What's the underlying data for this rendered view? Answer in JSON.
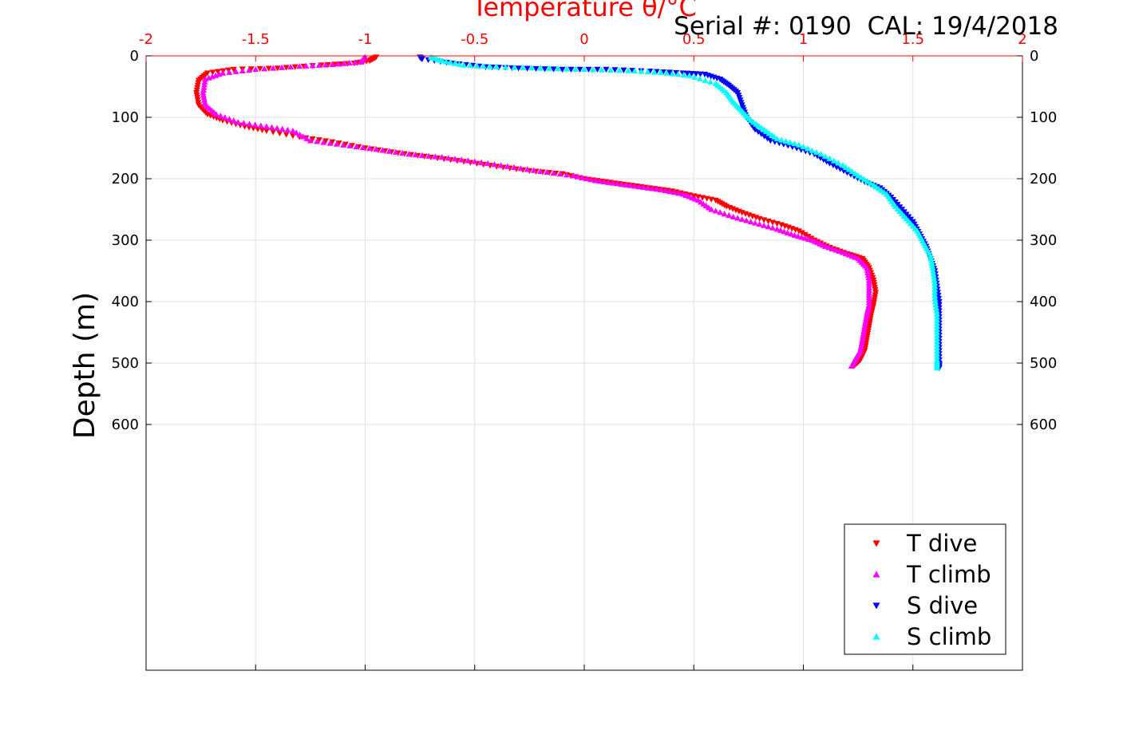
{
  "chart_data": {
    "type": "scatter",
    "title": "Temperature θ/°C",
    "annotation": "Serial #: 0190  CAL: 19/4/2018",
    "xlabel": "Temperature θ/°C",
    "ylabel": "Depth (m)",
    "xlim": [
      -2,
      2
    ],
    "ylim": [
      0,
      1000
    ],
    "y_reversed": true,
    "x_ticks": [
      "-2",
      "-1.5",
      "-1",
      "-0.5",
      "0",
      "0.5",
      "1",
      "1.5",
      "2"
    ],
    "y_ticks": [
      "0",
      "100",
      "200",
      "300",
      "400",
      "500",
      "600"
    ],
    "grid": true,
    "legend_position": "bottom-right",
    "colors": {
      "axis_top": "#ff0000",
      "axis_other": "#000000",
      "grid": "#e0e0e0"
    },
    "series": [
      {
        "name": "T dive",
        "marker": "triangle-down",
        "color": "#ff0000",
        "points": [
          [
            -0.95,
            2
          ],
          [
            -0.98,
            8
          ],
          [
            -1.05,
            12
          ],
          [
            -1.2,
            15
          ],
          [
            -1.4,
            20
          ],
          [
            -1.6,
            22
          ],
          [
            -1.72,
            28
          ],
          [
            -1.76,
            40
          ],
          [
            -1.77,
            60
          ],
          [
            -1.76,
            80
          ],
          [
            -1.72,
            95
          ],
          [
            -1.65,
            105
          ],
          [
            -1.55,
            115
          ],
          [
            -1.45,
            122
          ],
          [
            -1.3,
            132
          ],
          [
            -1.15,
            140
          ],
          [
            -1.0,
            150
          ],
          [
            -0.85,
            158
          ],
          [
            -0.7,
            165
          ],
          [
            -0.55,
            172
          ],
          [
            -0.4,
            180
          ],
          [
            -0.25,
            187
          ],
          [
            -0.1,
            192
          ],
          [
            0.0,
            200
          ],
          [
            0.1,
            205
          ],
          [
            0.2,
            210
          ],
          [
            0.3,
            215
          ],
          [
            0.4,
            220
          ],
          [
            0.5,
            228
          ],
          [
            0.6,
            235
          ],
          [
            0.65,
            245
          ],
          [
            0.72,
            255
          ],
          [
            0.8,
            265
          ],
          [
            0.9,
            275
          ],
          [
            0.98,
            285
          ],
          [
            1.05,
            300
          ],
          [
            1.12,
            312
          ],
          [
            1.2,
            322
          ],
          [
            1.27,
            330
          ],
          [
            1.3,
            345
          ],
          [
            1.32,
            365
          ],
          [
            1.33,
            385
          ],
          [
            1.32,
            405
          ],
          [
            1.31,
            420
          ],
          [
            1.3,
            440
          ],
          [
            1.29,
            460
          ],
          [
            1.28,
            480
          ],
          [
            1.26,
            495
          ],
          [
            1.23,
            505
          ]
        ]
      },
      {
        "name": "T climb",
        "marker": "triangle-up",
        "color": "#ff00ff",
        "points": [
          [
            -1.0,
            2
          ],
          [
            -1.02,
            10
          ],
          [
            -1.15,
            14
          ],
          [
            -1.3,
            17
          ],
          [
            -1.5,
            22
          ],
          [
            -1.65,
            28
          ],
          [
            -1.73,
            38
          ],
          [
            -1.74,
            60
          ],
          [
            -1.73,
            80
          ],
          [
            -1.68,
            95
          ],
          [
            -1.58,
            108
          ],
          [
            -1.45,
            115
          ],
          [
            -1.33,
            122
          ],
          [
            -1.25,
            138
          ],
          [
            -1.1,
            145
          ],
          [
            -0.95,
            152
          ],
          [
            -0.8,
            160
          ],
          [
            -0.65,
            165
          ],
          [
            -0.5,
            172
          ],
          [
            -0.35,
            180
          ],
          [
            -0.2,
            188
          ],
          [
            -0.05,
            195
          ],
          [
            0.05,
            203
          ],
          [
            0.15,
            208
          ],
          [
            0.25,
            213
          ],
          [
            0.35,
            218
          ],
          [
            0.45,
            225
          ],
          [
            0.52,
            235
          ],
          [
            0.58,
            250
          ],
          [
            0.68,
            262
          ],
          [
            0.78,
            272
          ],
          [
            0.88,
            282
          ],
          [
            0.96,
            292
          ],
          [
            1.04,
            300
          ],
          [
            1.1,
            310
          ],
          [
            1.18,
            320
          ],
          [
            1.25,
            330
          ],
          [
            1.29,
            345
          ],
          [
            1.3,
            365
          ],
          [
            1.3,
            385
          ],
          [
            1.3,
            405
          ],
          [
            1.29,
            420
          ],
          [
            1.28,
            440
          ],
          [
            1.27,
            460
          ],
          [
            1.26,
            480
          ],
          [
            1.24,
            492
          ],
          [
            1.22,
            505
          ]
        ]
      },
      {
        "name": "S dive",
        "marker": "triangle-down",
        "color": "#0000ff",
        "points": [
          [
            -0.75,
            2
          ],
          [
            -0.74,
            5
          ],
          [
            -0.6,
            12
          ],
          [
            -0.45,
            18
          ],
          [
            -0.3,
            20
          ],
          [
            -0.1,
            22
          ],
          [
            0.1,
            22
          ],
          [
            0.3,
            25
          ],
          [
            0.45,
            28
          ],
          [
            0.55,
            30
          ],
          [
            0.62,
            38
          ],
          [
            0.66,
            48
          ],
          [
            0.7,
            60
          ],
          [
            0.72,
            80
          ],
          [
            0.74,
            100
          ],
          [
            0.78,
            120
          ],
          [
            0.85,
            138
          ],
          [
            0.95,
            148
          ],
          [
            1.05,
            160
          ],
          [
            1.12,
            175
          ],
          [
            1.2,
            190
          ],
          [
            1.28,
            205
          ],
          [
            1.35,
            215
          ],
          [
            1.4,
            230
          ],
          [
            1.45,
            250
          ],
          [
            1.5,
            270
          ],
          [
            1.53,
            290
          ],
          [
            1.56,
            310
          ],
          [
            1.58,
            330
          ],
          [
            1.6,
            350
          ],
          [
            1.61,
            375
          ],
          [
            1.62,
            400
          ],
          [
            1.62,
            425
          ],
          [
            1.62,
            450
          ],
          [
            1.62,
            475
          ],
          [
            1.62,
            500
          ],
          [
            1.62,
            508
          ]
        ]
      },
      {
        "name": "S climb",
        "marker": "triangle-up",
        "color": "#00ffff",
        "points": [
          [
            -0.7,
            2
          ],
          [
            -0.65,
            8
          ],
          [
            -0.55,
            15
          ],
          [
            -0.4,
            18
          ],
          [
            -0.2,
            20
          ],
          [
            0.0,
            22
          ],
          [
            0.2,
            24
          ],
          [
            0.35,
            27
          ],
          [
            0.48,
            32
          ],
          [
            0.6,
            45
          ],
          [
            0.65,
            60
          ],
          [
            0.68,
            75
          ],
          [
            0.72,
            90
          ],
          [
            0.76,
            105
          ],
          [
            0.82,
            120
          ],
          [
            0.88,
            135
          ],
          [
            0.98,
            145
          ],
          [
            1.08,
            160
          ],
          [
            1.18,
            178
          ],
          [
            1.25,
            195
          ],
          [
            1.32,
            210
          ],
          [
            1.38,
            225
          ],
          [
            1.42,
            245
          ],
          [
            1.47,
            265
          ],
          [
            1.52,
            285
          ],
          [
            1.55,
            305
          ],
          [
            1.58,
            325
          ],
          [
            1.59,
            345
          ],
          [
            1.6,
            370
          ],
          [
            1.6,
            395
          ],
          [
            1.61,
            420
          ],
          [
            1.61,
            445
          ],
          [
            1.61,
            470
          ],
          [
            1.61,
            495
          ],
          [
            1.61,
            508
          ]
        ]
      }
    ]
  }
}
